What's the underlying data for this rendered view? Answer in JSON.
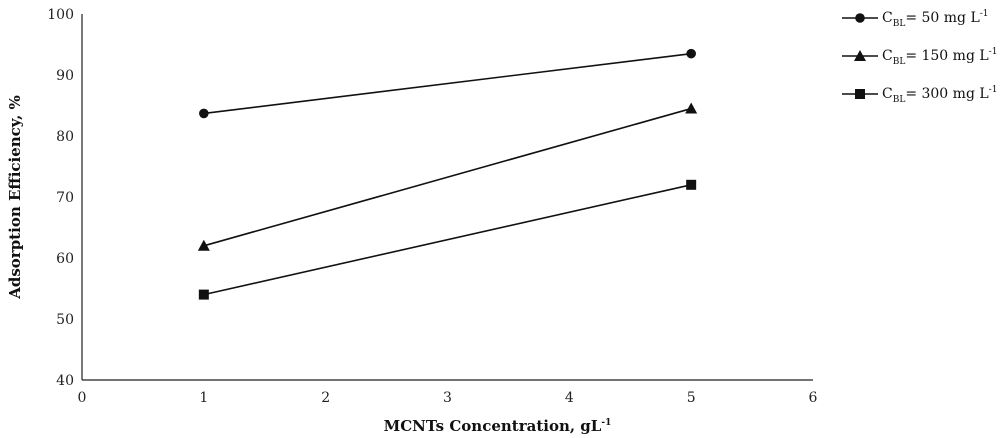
{
  "chart_data": {
    "type": "line",
    "xlabel": "MCNTs Concentration, gL",
    "xlabel_sup": "-1",
    "ylabel": "Adsorption Efficiency, %",
    "xlim": [
      0,
      6
    ],
    "ylim": [
      40,
      100
    ],
    "xticks": [
      "0",
      "1",
      "2",
      "3",
      "4",
      "5",
      "6"
    ],
    "yticks": [
      "40",
      "50",
      "60",
      "70",
      "80",
      "90",
      "100"
    ],
    "grid": false,
    "legend_position": "top-right",
    "series": [
      {
        "name": "C_BL= 50 mg L-1",
        "legend": {
          "c": "C",
          "sub": "BL",
          "rest": "= 50 mg L",
          "sup": "-1"
        },
        "marker": "circle",
        "color": "#111111",
        "x": [
          1,
          5
        ],
        "y": [
          83.7,
          93.5
        ]
      },
      {
        "name": "C_BL= 150 mg L-1",
        "legend": {
          "c": "C",
          "sub": "BL",
          "rest": "= 150 mg L",
          "sup": "-1"
        },
        "marker": "triangle",
        "color": "#111111",
        "x": [
          1,
          5
        ],
        "y": [
          62,
          84.5
        ]
      },
      {
        "name": "C_BL= 300 mg L-1",
        "legend": {
          "c": "C",
          "sub": "BL",
          "rest": "= 300 mg L",
          "sup": "-1"
        },
        "marker": "square",
        "color": "#111111",
        "x": [
          1,
          5
        ],
        "y": [
          54,
          72
        ]
      }
    ]
  }
}
